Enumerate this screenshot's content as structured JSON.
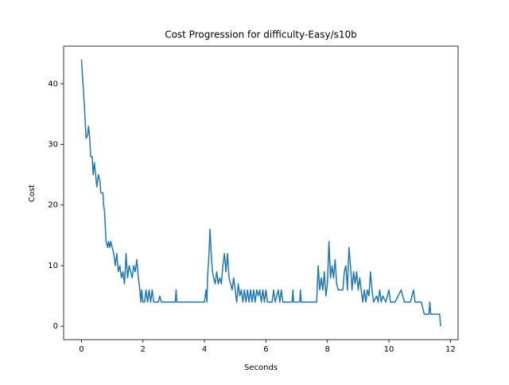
{
  "chart_data": {
    "type": "line",
    "title": "Cost Progression for difficulty-Easy/s10b",
    "xlabel": "Seconds",
    "ylabel": "Cost",
    "xlim": [
      -0.58,
      12.25
    ],
    "ylim": [
      -2.2,
      46.2
    ],
    "xticks": [
      0,
      2,
      4,
      6,
      8,
      10,
      12
    ],
    "yticks": [
      0,
      10,
      20,
      30,
      40
    ],
    "series": [
      {
        "color": "#1f77b4",
        "x": [
          0,
          0.05,
          0.1,
          0.15,
          0.2,
          0.23,
          0.27,
          0.3,
          0.35,
          0.38,
          0.42,
          0.46,
          0.5,
          0.55,
          0.6,
          0.63,
          0.7,
          0.72,
          0.75,
          0.78,
          0.8,
          0.85,
          0.88,
          0.92,
          0.95,
          1.0,
          1.05,
          1.1,
          1.15,
          1.2,
          1.25,
          1.3,
          1.35,
          1.4,
          1.45,
          1.5,
          1.55,
          1.6,
          1.65,
          1.7,
          1.75,
          1.8,
          1.85,
          1.9,
          1.93,
          1.96,
          2.0,
          2.05,
          2.1,
          2.15,
          2.2,
          2.25,
          2.3,
          2.35,
          2.5,
          2.55,
          2.6,
          3.05,
          3.08,
          3.1,
          4.0,
          4.05,
          4.08,
          4.1,
          4.15,
          4.18,
          4.22,
          4.26,
          4.3,
          4.35,
          4.4,
          4.45,
          4.5,
          4.55,
          4.6,
          4.65,
          4.7,
          4.75,
          4.8,
          4.85,
          4.9,
          4.95,
          5.0,
          5.05,
          5.1,
          5.15,
          5.2,
          5.25,
          5.3,
          5.35,
          5.4,
          5.45,
          5.5,
          5.55,
          5.6,
          5.65,
          5.7,
          5.75,
          5.8,
          5.85,
          5.9,
          5.95,
          6.0,
          6.05,
          6.2,
          6.25,
          6.3,
          6.4,
          6.45,
          6.5,
          6.55,
          6.85,
          6.88,
          6.9,
          7.1,
          7.12,
          7.15,
          7.65,
          7.7,
          7.75,
          7.8,
          7.85,
          7.9,
          7.95,
          8.0,
          8.05,
          8.1,
          8.15,
          8.2,
          8.25,
          8.3,
          8.35,
          8.5,
          8.55,
          8.6,
          8.65,
          8.7,
          8.75,
          8.8,
          8.85,
          8.9,
          8.95,
          9.0,
          9.05,
          9.1,
          9.15,
          9.2,
          9.25,
          9.3,
          9.35,
          9.4,
          9.45,
          9.5,
          9.6,
          9.65,
          9.7,
          9.75,
          9.8,
          9.9,
          10.0,
          10.05,
          10.2,
          10.3,
          10.4,
          10.5,
          10.7,
          10.8,
          10.85,
          11.05,
          11.1,
          11.15,
          11.3,
          11.33,
          11.36,
          11.65,
          11.68
        ],
        "values": [
          44,
          40,
          36,
          31,
          31.5,
          33,
          31,
          28,
          28,
          25,
          27,
          25,
          23,
          25,
          24,
          22,
          22,
          20,
          19,
          16,
          14,
          13,
          14,
          13,
          14,
          13,
          12,
          10,
          12,
          9,
          10,
          8,
          9,
          7,
          12,
          8,
          10,
          9,
          8,
          10,
          9,
          11,
          8,
          6,
          4,
          6,
          4,
          4,
          6,
          4,
          6,
          4,
          6,
          4,
          4,
          5,
          4,
          4,
          6,
          4,
          4,
          6,
          4,
          8,
          12,
          16,
          12,
          9,
          8,
          7,
          9,
          7,
          8,
          7,
          10,
          12,
          9,
          12,
          8,
          7,
          6,
          8,
          6,
          4,
          7,
          5,
          6,
          4,
          6,
          4,
          6,
          4,
          6,
          4,
          6,
          4,
          6,
          5,
          6,
          4,
          6,
          4,
          6,
          4,
          4,
          6,
          4,
          6,
          4,
          6,
          4,
          4,
          6,
          4,
          4,
          6,
          4,
          4,
          10,
          6,
          8,
          6,
          9,
          5,
          7,
          14,
          8,
          10,
          8,
          11,
          7,
          6,
          6,
          9,
          10,
          6,
          13,
          10,
          6,
          9,
          7,
          9,
          6,
          8,
          6,
          4,
          6,
          4,
          6,
          5,
          9,
          6,
          4,
          5,
          4,
          6,
          4,
          5,
          4,
          6,
          4,
          4,
          5,
          6,
          4,
          4,
          6,
          4,
          4,
          3,
          2,
          2,
          4,
          2,
          2,
          0
        ]
      }
    ]
  }
}
